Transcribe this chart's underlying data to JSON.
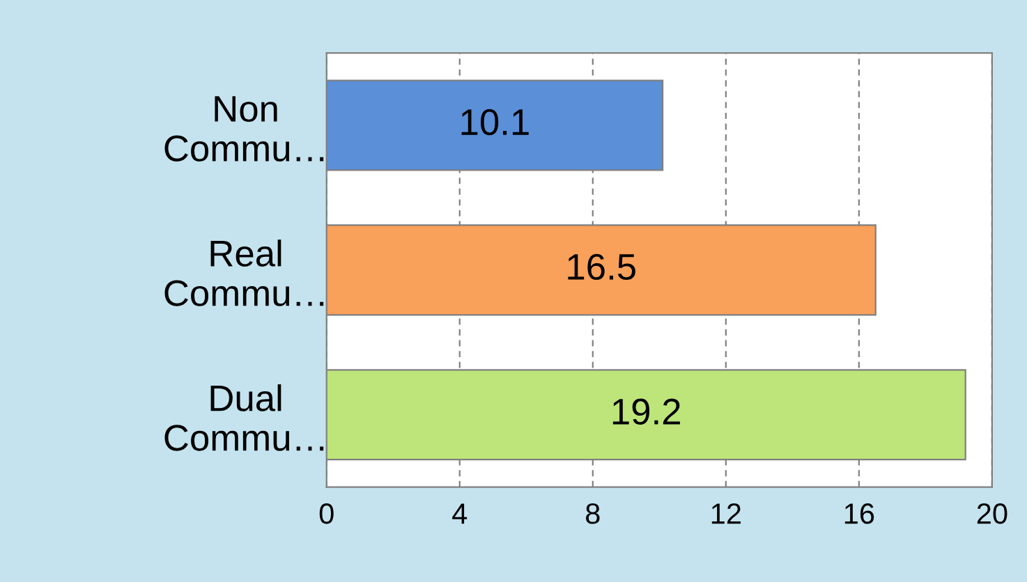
{
  "chart_data": {
    "type": "bar",
    "orientation": "horizontal",
    "categories": [
      "Non\nCommu…",
      "Real\nCommu…",
      "Dual\nCommu…"
    ],
    "values": [
      10.1,
      16.5,
      19.2
    ],
    "colors": [
      "#5b8fd8",
      "#f9a05a",
      "#bde57a"
    ],
    "xlim": [
      0,
      20
    ],
    "xticks": [
      0,
      4,
      8,
      12,
      16,
      20
    ],
    "grid": "x",
    "data_labels": true
  }
}
